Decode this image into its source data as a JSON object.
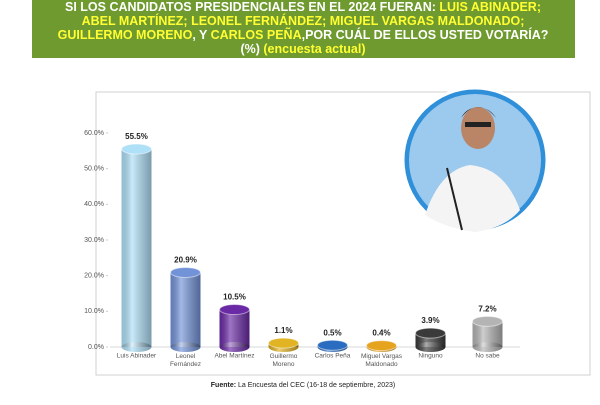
{
  "header": {
    "lines": [
      [
        {
          "text": "SI LOS CANDIDATOS PRESIDENCIALES EN EL 2024 FUERAN: ",
          "color": "#ffffff"
        },
        {
          "text": "LUIS ABINADER;",
          "color": "#ffff33"
        }
      ],
      [
        {
          "text": "ABEL MARTÍNEZ; LEONEL FERNÁNDEZ; MIGUEL VARGAS MALDONADO;",
          "color": "#ffff33"
        }
      ],
      [
        {
          "text": "GUILLERMO MORENO",
          "color": "#ffff33"
        },
        {
          "text": ", Y ",
          "color": "#ffffff"
        },
        {
          "text": "CARLOS PEÑA",
          "color": "#ffff33"
        },
        {
          "text": ",POR CUÁL DE ELLOS USTED VOTARÍA?",
          "color": "#ffffff"
        }
      ],
      [
        {
          "text": "(%) ",
          "color": "#ffffff"
        },
        {
          "text": "(encuesta actual)",
          "color": "#ffff33"
        }
      ]
    ]
  },
  "chart_data": {
    "type": "bar",
    "categories": [
      "Luis Abinader",
      "Leonel Fernández",
      "Abel Martínez",
      "Guillermo Moreno",
      "Carlos Peña",
      "Miguel Vargas Maldonado",
      "Ninguno",
      "No sabe"
    ],
    "values": [
      55.5,
      20.9,
      10.5,
      1.1,
      0.5,
      0.4,
      3.9,
      7.2
    ],
    "value_labels": [
      "55.5%",
      "20.9%",
      "10.5%",
      "1.1%",
      "0.5%",
      "0.4%",
      "3.9%",
      "7.2%"
    ],
    "colors": [
      "#aee0f7",
      "#7393d8",
      "#6a2aa6",
      "#e2b322",
      "#2a6cc0",
      "#e6a31e",
      "#3a3a3a",
      "#b4b4b4"
    ],
    "ylim": [
      0,
      60
    ],
    "yticks": [
      {
        "value": 0,
        "label": "0.0%"
      },
      {
        "value": 10,
        "label": "10.0%"
      },
      {
        "value": 20,
        "label": "20.0%"
      },
      {
        "value": 30,
        "label": "30.0%"
      },
      {
        "value": 40,
        "label": "40.0%"
      },
      {
        "value": 50,
        "label": "50.0%"
      },
      {
        "value": 60,
        "label": "60.0%"
      }
    ],
    "grid": false
  },
  "source": {
    "label": "Fuente:",
    "text": " La Encuesta del CEC (16-18 de septiembre, 2023)"
  }
}
